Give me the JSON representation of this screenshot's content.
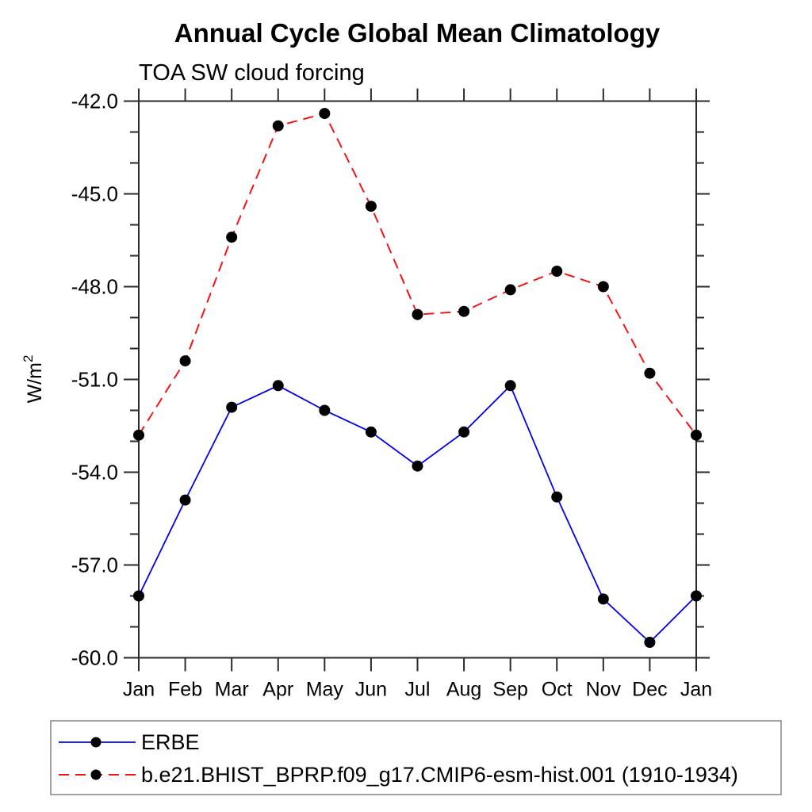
{
  "chart": {
    "background": "#ffffff",
    "frame_color": "#2a2a2a",
    "text_color": "#000000",
    "legend_border_color": "#8c8c8c"
  },
  "chart_data": {
    "type": "line",
    "title": "Annual Cycle Global Mean Climatology",
    "subtitle": "TOA SW cloud forcing",
    "xlabel": "",
    "ylabel": "W/m²",
    "ylabel_display": {
      "base": "W/m",
      "sup": "2"
    },
    "categories": [
      "Jan",
      "Feb",
      "Mar",
      "Apr",
      "May",
      "Jun",
      "Jul",
      "Aug",
      "Sep",
      "Oct",
      "Nov",
      "Dec",
      "Jan"
    ],
    "ylim": [
      -60.0,
      -42.0
    ],
    "yticks_major": [
      -42.0,
      -45.0,
      -48.0,
      -51.0,
      -54.0,
      -57.0,
      -60.0
    ],
    "ytick_labels": [
      "-42.0",
      "-45.0",
      "-48.0",
      "-51.0",
      "-54.0",
      "-57.0",
      "-60.0"
    ],
    "ytick_minor_step": 1.0,
    "grid": false,
    "legend_position": "bottom",
    "series": [
      {
        "name": "ERBE",
        "line_style": "solid",
        "color": "#0000ee",
        "marker": "filled-circle",
        "marker_color": "#000000",
        "values": [
          -58.0,
          -54.9,
          -51.9,
          -51.2,
          -52.0,
          -52.7,
          -53.8,
          -52.7,
          -51.2,
          -54.8,
          -58.1,
          -59.5,
          -58.0
        ]
      },
      {
        "name": "b.e21.BHIST_BPRP.f09_g17.CMIP6-esm-hist.001 (1910-1934)",
        "line_style": "dashed",
        "color": "#f51414",
        "marker": "filled-circle",
        "marker_color": "#000000",
        "values": [
          -52.8,
          -50.4,
          -46.4,
          -42.8,
          -42.4,
          -45.4,
          -48.9,
          -48.8,
          -48.1,
          -47.5,
          -48.0,
          -50.8,
          -52.8
        ]
      }
    ]
  }
}
